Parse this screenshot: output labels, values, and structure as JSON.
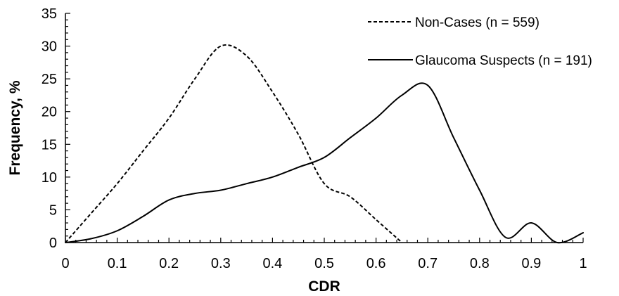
{
  "chart_data": {
    "type": "line",
    "title": "",
    "xlabel": "CDR",
    "ylabel": "Frequency, %",
    "xlim": [
      0,
      1
    ],
    "ylim": [
      0,
      35
    ],
    "xticks": [
      0,
      0.1,
      0.2,
      0.3,
      0.4,
      0.5,
      0.6,
      0.7,
      0.8,
      0.9,
      1
    ],
    "xtick_labels": [
      "0",
      "0.1",
      "0.2",
      "0.3",
      "0.4",
      "0.5",
      "0.6",
      "0.7",
      "0.8",
      "0.9",
      "1"
    ],
    "yticks": [
      0,
      5,
      10,
      15,
      20,
      25,
      30,
      35
    ],
    "ytick_labels": [
      "0",
      "5",
      "10",
      "15",
      "20",
      "25",
      "30",
      "35"
    ],
    "grid": false,
    "legend_position": "top-right",
    "series": [
      {
        "name": "Non-Cases (n = 559)",
        "line_style": "dashed",
        "color": "#000000",
        "x": [
          0,
          0.05,
          0.1,
          0.15,
          0.2,
          0.25,
          0.3,
          0.35,
          0.4,
          0.45,
          0.5,
          0.55,
          0.6,
          0.65
        ],
        "y": [
          0,
          4.5,
          9,
          14,
          19,
          25,
          30,
          28.5,
          23,
          16.5,
          9,
          7,
          3.5,
          0
        ]
      },
      {
        "name": "Glaucoma Suspects (n = 191)",
        "line_style": "solid",
        "color": "#000000",
        "x": [
          0,
          0.05,
          0.1,
          0.15,
          0.2,
          0.25,
          0.3,
          0.35,
          0.4,
          0.45,
          0.5,
          0.55,
          0.6,
          0.65,
          0.7,
          0.75,
          0.8,
          0.85,
          0.9,
          0.95,
          1
        ],
        "y": [
          0,
          0.6,
          1.8,
          4,
          6.5,
          7.5,
          8,
          9,
          10,
          11.5,
          13,
          16,
          19,
          22.5,
          24,
          16,
          8,
          0.8,
          3,
          0,
          1.5
        ]
      }
    ]
  }
}
